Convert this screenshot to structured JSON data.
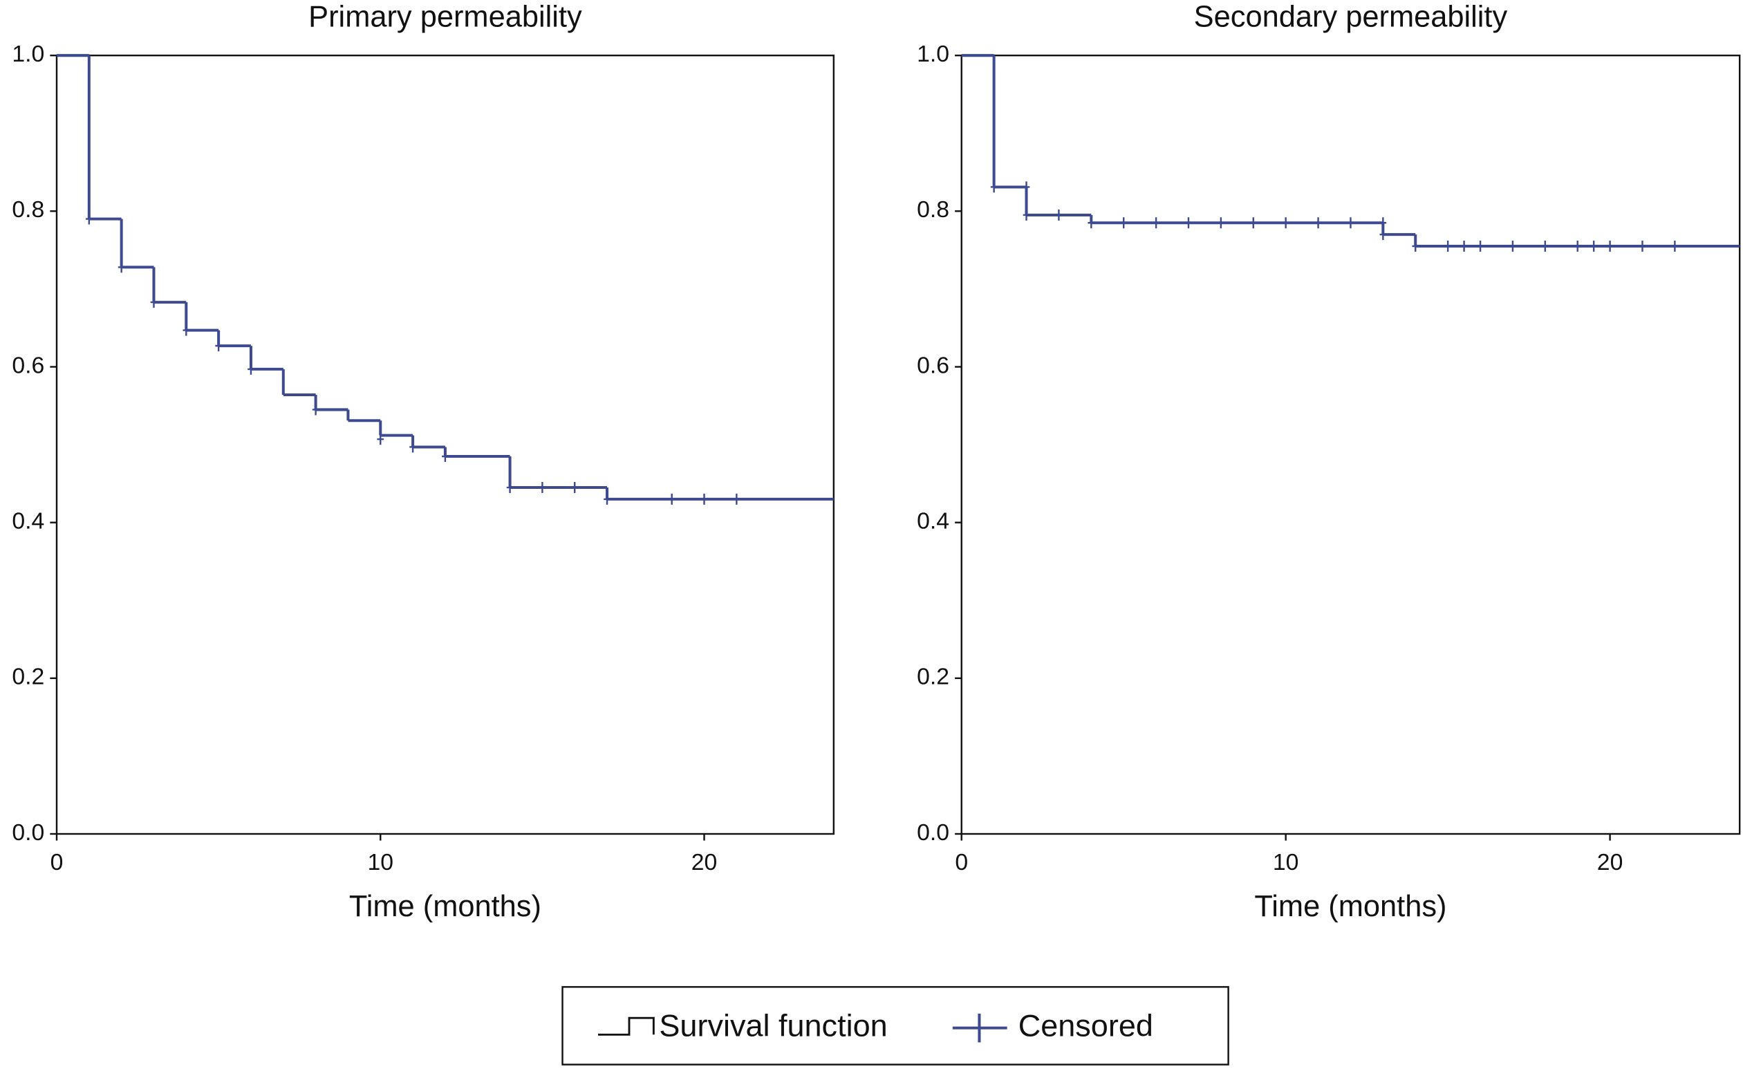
{
  "chart_data": [
    {
      "type": "step",
      "title": "Primary permeability",
      "x_label": "Time (months)",
      "xlim": [
        0,
        24
      ],
      "xticks": [
        0,
        10,
        20
      ],
      "ylim": [
        0,
        1
      ],
      "yticks": [
        {
          "value": 0,
          "label": "0.0"
        },
        0.2,
        0.4,
        0.6,
        0.8,
        {
          "value": 1,
          "label": "1.0"
        }
      ],
      "series": [
        {
          "name": "Survival function",
          "color": "#3d4a8f",
          "legend_color": "#111111",
          "drawstyle": "steps-post",
          "x": [
            0,
            1,
            2,
            3,
            4,
            5,
            6,
            7,
            8,
            9,
            10,
            11,
            12,
            14,
            17
          ],
          "values": [
            1.0,
            0.79,
            0.728,
            0.683,
            0.647,
            0.627,
            0.597,
            0.564,
            0.545,
            0.531,
            0.512,
            0.497,
            0.485,
            0.445,
            0.43
          ]
        },
        {
          "name": "Censored",
          "color": "#3d4a8f",
          "marker": "cross",
          "x": [
            1,
            2,
            3,
            4,
            5,
            6,
            8,
            10,
            11,
            12,
            14,
            15,
            16,
            17,
            19,
            20,
            21
          ],
          "values": [
            0.79,
            0.728,
            0.683,
            0.647,
            0.627,
            0.597,
            0.545,
            0.507,
            0.497,
            0.485,
            0.445,
            0.445,
            0.445,
            0.43,
            0.43,
            0.43,
            0.43
          ]
        }
      ]
    },
    {
      "type": "step",
      "title": "Secondary permeability",
      "x_label": "Time (months)",
      "xlim": [
        0,
        24
      ],
      "xticks": [
        0,
        10,
        20
      ],
      "ylim": [
        0,
        1
      ],
      "yticks": [
        {
          "value": 0,
          "label": "0.0"
        },
        0.2,
        0.4,
        0.6,
        0.8,
        {
          "value": 1,
          "label": "1.0"
        }
      ],
      "series": [
        {
          "name": "Survival function",
          "color": "#3d4a8f",
          "legend_color": "#111111",
          "drawstyle": "steps-post",
          "x": [
            0,
            1,
            2,
            4,
            13,
            14
          ],
          "values": [
            1.0,
            0.831,
            0.795,
            0.785,
            0.77,
            0.755
          ]
        },
        {
          "name": "Censored",
          "color": "#3d4a8f",
          "marker": "cross",
          "x": [
            1,
            2,
            2,
            3,
            4,
            5,
            6,
            7,
            8,
            9,
            10,
            11,
            12,
            13,
            13,
            14,
            15,
            15.5,
            16,
            17,
            18,
            19,
            19.5,
            20,
            21,
            22
          ],
          "values": [
            0.831,
            0.831,
            0.795,
            0.795,
            0.785,
            0.785,
            0.785,
            0.785,
            0.785,
            0.785,
            0.785,
            0.785,
            0.785,
            0.785,
            0.77,
            0.755,
            0.755,
            0.755,
            0.755,
            0.755,
            0.755,
            0.755,
            0.755,
            0.755,
            0.755,
            0.755
          ]
        }
      ]
    }
  ]
}
